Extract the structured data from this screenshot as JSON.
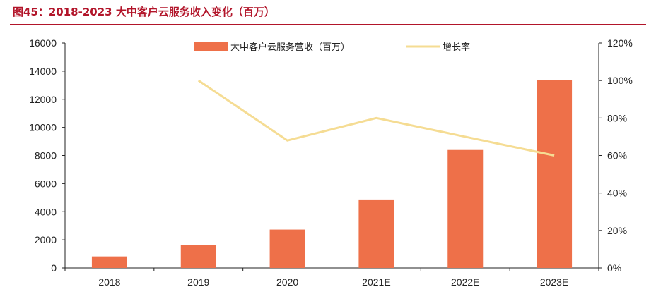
{
  "title": "图45：2018-2023 大中客户云服务收入变化（百万）",
  "colors": {
    "bar": "#ee7049",
    "line": "#f5dc93",
    "title": "#b2152a",
    "axis": "#222222"
  },
  "chart_data": {
    "type": "bar",
    "categories": [
      "2018",
      "2019",
      "2020",
      "2021E",
      "2022E",
      "2023E"
    ],
    "series": [
      {
        "name": "大中客户云服务营收（百万）",
        "type": "bar",
        "axis": "left",
        "values": [
          820,
          1650,
          2730,
          4870,
          8390,
          13350
        ]
      },
      {
        "name": "增长率",
        "type": "line",
        "axis": "right",
        "values": [
          null,
          1.0,
          0.68,
          0.8,
          0.7,
          0.6
        ]
      }
    ],
    "y_left": {
      "min": 0,
      "max": 16000,
      "step": 2000,
      "ticks": [
        "0",
        "2000",
        "4000",
        "6000",
        "8000",
        "10000",
        "12000",
        "14000",
        "16000"
      ]
    },
    "y_right": {
      "min": 0,
      "max": 1.2,
      "step": 0.2,
      "ticks": [
        "0%",
        "20%",
        "40%",
        "60%",
        "80%",
        "100%",
        "120%"
      ]
    },
    "legend": {
      "placement": "top-center",
      "entries": [
        "大中客户云服务营收（百万）",
        "增长率"
      ]
    },
    "grid": false
  }
}
